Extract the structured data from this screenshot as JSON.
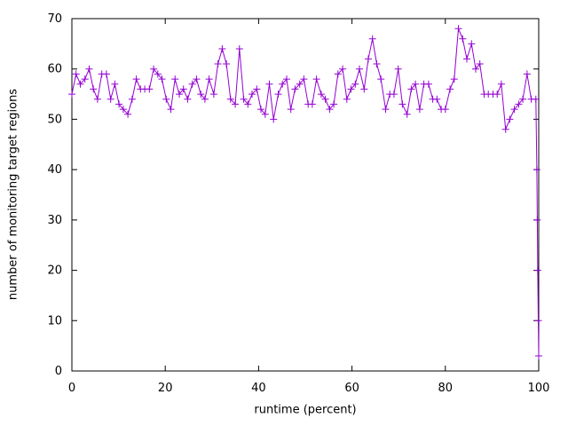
{
  "figure": {
    "background_color": "#ffffff",
    "frame_color": "#000000",
    "text_color": "#000000"
  },
  "chart_data": {
    "type": "line",
    "title": "",
    "xlabel": "runtime (percent)",
    "ylabel": "number of monitoring target regions",
    "xlim": [
      0,
      100
    ],
    "ylim": [
      0,
      70
    ],
    "xticks": [
      0,
      20,
      40,
      60,
      80,
      100
    ],
    "yticks": [
      0,
      10,
      20,
      30,
      40,
      50,
      60,
      70
    ],
    "grid": false,
    "legend": "none",
    "series": [
      {
        "name": "monitoring target regions",
        "color": "#9400D3",
        "marker": "plus",
        "points": [
          [
            0,
            55
          ],
          [
            0.9,
            59
          ],
          [
            1.8,
            57
          ],
          [
            2.8,
            58
          ],
          [
            3.7,
            60
          ],
          [
            4.6,
            56
          ],
          [
            5.5,
            54
          ],
          [
            6.4,
            59
          ],
          [
            7.4,
            59
          ],
          [
            8.3,
            54
          ],
          [
            9.2,
            57
          ],
          [
            10.1,
            53
          ],
          [
            11,
            52
          ],
          [
            12,
            51
          ],
          [
            12.9,
            54
          ],
          [
            13.8,
            58
          ],
          [
            14.7,
            56
          ],
          [
            15.6,
            56
          ],
          [
            16.6,
            56
          ],
          [
            17.5,
            60
          ],
          [
            18.4,
            59
          ],
          [
            19.3,
            58
          ],
          [
            20.2,
            54
          ],
          [
            21.2,
            52
          ],
          [
            22.1,
            58
          ],
          [
            23,
            55
          ],
          [
            23.9,
            56
          ],
          [
            24.8,
            54
          ],
          [
            25.8,
            57
          ],
          [
            26.7,
            58
          ],
          [
            27.6,
            55
          ],
          [
            28.5,
            54
          ],
          [
            29.4,
            58
          ],
          [
            30.4,
            55
          ],
          [
            31.3,
            61
          ],
          [
            32.2,
            64
          ],
          [
            33.1,
            61
          ],
          [
            34,
            54
          ],
          [
            35,
            53
          ],
          [
            35.9,
            64
          ],
          [
            36.8,
            54
          ],
          [
            37.7,
            53
          ],
          [
            38.6,
            55
          ],
          [
            39.6,
            56
          ],
          [
            40.5,
            52
          ],
          [
            41.4,
            51
          ],
          [
            42.3,
            57
          ],
          [
            43.2,
            50
          ],
          [
            44.2,
            55
          ],
          [
            45.1,
            57
          ],
          [
            46,
            58
          ],
          [
            46.9,
            52
          ],
          [
            47.8,
            56
          ],
          [
            48.8,
            57
          ],
          [
            49.7,
            58
          ],
          [
            50.6,
            53
          ],
          [
            51.5,
            53
          ],
          [
            52.4,
            58
          ],
          [
            53.4,
            55
          ],
          [
            54.3,
            54
          ],
          [
            55.2,
            52
          ],
          [
            56.1,
            53
          ],
          [
            57,
            59
          ],
          [
            58,
            60
          ],
          [
            58.9,
            54
          ],
          [
            59.8,
            56
          ],
          [
            60.7,
            57
          ],
          [
            61.6,
            60
          ],
          [
            62.6,
            56
          ],
          [
            63.5,
            62
          ],
          [
            64.4,
            66
          ],
          [
            65.3,
            61
          ],
          [
            66.2,
            58
          ],
          [
            67.2,
            52
          ],
          [
            68.1,
            55
          ],
          [
            69,
            55
          ],
          [
            69.9,
            60
          ],
          [
            70.8,
            53
          ],
          [
            71.8,
            51
          ],
          [
            72.7,
            56
          ],
          [
            73.6,
            57
          ],
          [
            74.5,
            52
          ],
          [
            75.4,
            57
          ],
          [
            76.4,
            57
          ],
          [
            77.3,
            54
          ],
          [
            78.2,
            54
          ],
          [
            79.1,
            52
          ],
          [
            80,
            52
          ],
          [
            81,
            56
          ],
          [
            81.9,
            58
          ],
          [
            82.8,
            68
          ],
          [
            83.7,
            66
          ],
          [
            84.6,
            62
          ],
          [
            85.6,
            65
          ],
          [
            86.5,
            60
          ],
          [
            87.4,
            61
          ],
          [
            88.3,
            55
          ],
          [
            89.2,
            55
          ],
          [
            90.2,
            55
          ],
          [
            91.1,
            55
          ],
          [
            92,
            57
          ],
          [
            92.9,
            48
          ],
          [
            93.8,
            50
          ],
          [
            94.8,
            52
          ],
          [
            95.7,
            53
          ],
          [
            96.6,
            54
          ],
          [
            97.5,
            59
          ],
          [
            98.4,
            54
          ],
          [
            99.4,
            54
          ],
          [
            99.6,
            40
          ],
          [
            99.7,
            30
          ],
          [
            99.8,
            20
          ],
          [
            99.9,
            10
          ],
          [
            100,
            3
          ]
        ]
      }
    ]
  }
}
